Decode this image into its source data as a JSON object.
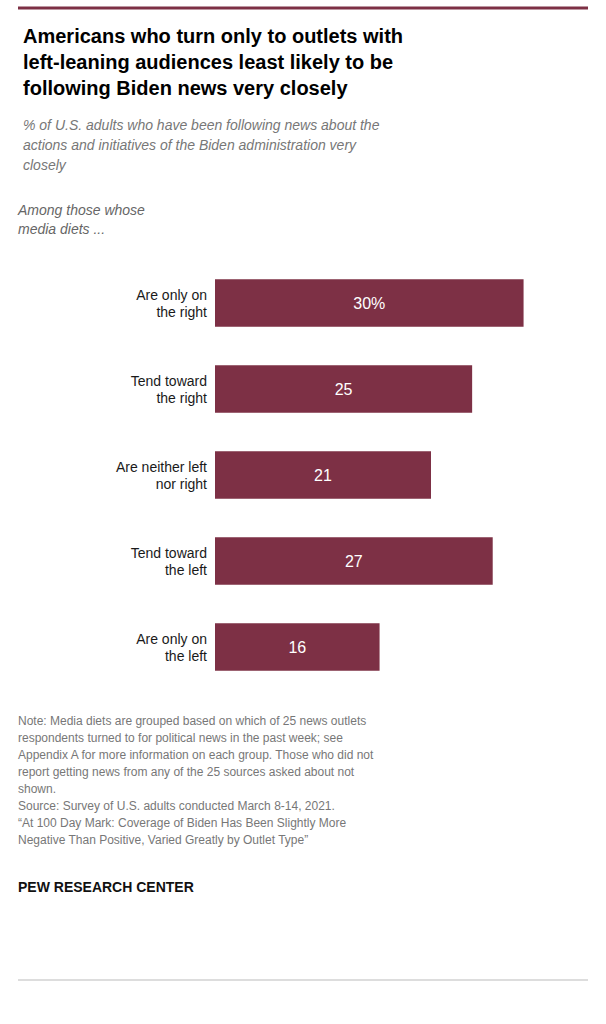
{
  "chart_data": {
    "type": "bar",
    "orientation": "horizontal",
    "title": "Americans who turn only to outlets with\nleft-leaning audiences least likely to be\nfollowing Biden news very closely",
    "subtitle": "% of U.S. adults who have been following news about the\nactions and initiatives of the Biden administration very\nclosely",
    "annotations": [
      "Among those whose\nmedia diets ...",
      "Note: Media diets are grouped based on which of 25 news outlets\nrespondents turned to for political news in the past week; see\nAppendix A for more information on each group. Those who did not\nreport getting news from any of the 25 sources asked about not\nshown.\nSource: Survey of U.S. adults conducted March 8-14, 2021.\n“At 100 Day Mark: Coverage of Biden Has Been Slightly More\nNegative Than Positive, Varied Greatly by Outlet Type”",
      "PEW RESEARCH CENTER"
    ],
    "categories": [
      "Are only on\nthe right",
      "Tend toward\nthe right",
      "Are neither left\nnor right",
      "Tend toward\nthe left",
      "Are only on\nthe left"
    ],
    "values": [
      30,
      25,
      21,
      27,
      16
    ],
    "value_labels": [
      "30%",
      "25",
      "21",
      "27",
      "16"
    ],
    "data_labels": true,
    "color": "#7d3045",
    "xlim": [
      0,
      35
    ],
    "grid": false,
    "tick_labels": "y"
  }
}
